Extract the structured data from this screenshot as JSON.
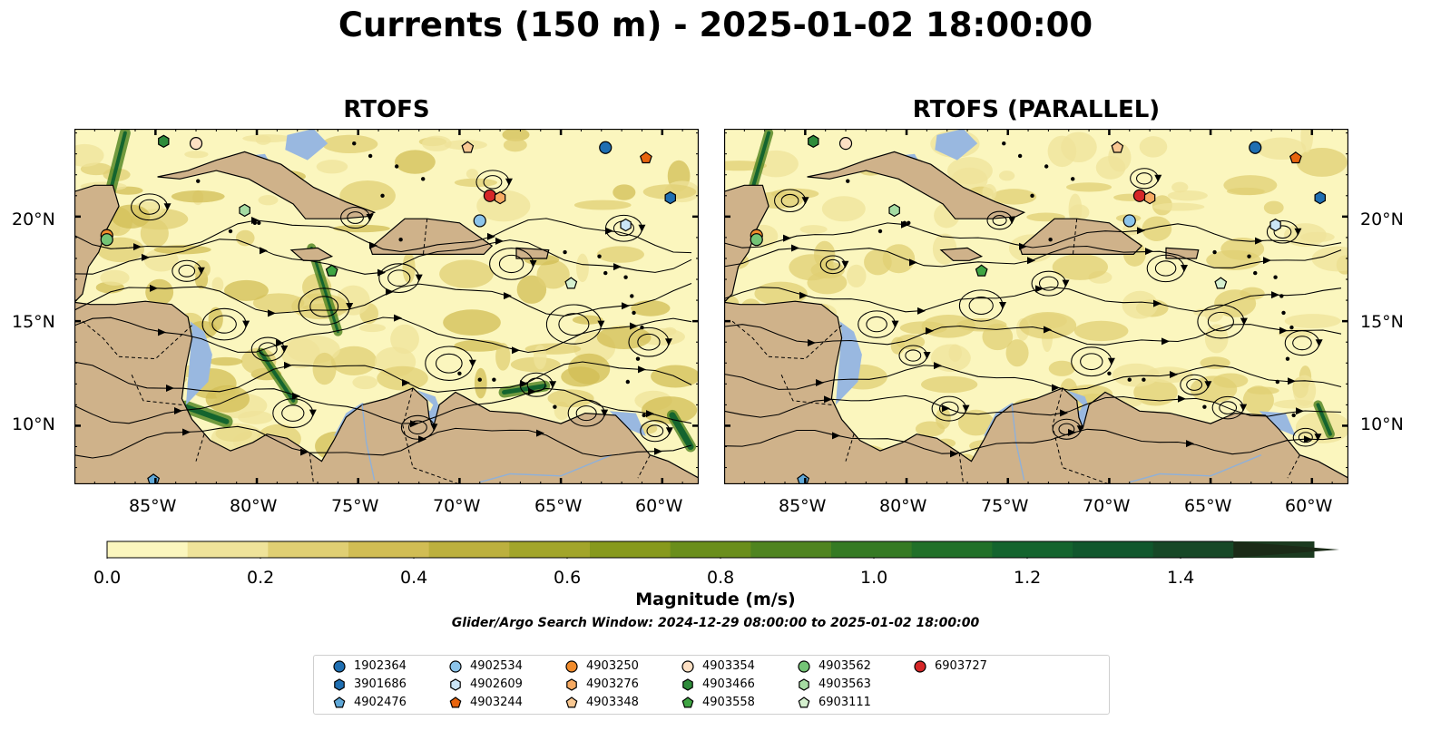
{
  "title": "Currents (150 m) - 2025-01-02 18:00:00",
  "panels": [
    {
      "title": "RTOFS"
    },
    {
      "title": "RTOFS (PARALLEL)"
    }
  ],
  "axes": {
    "lon_labels": [
      "85°W",
      "80°W",
      "75°W",
      "70°W",
      "65°W",
      "60°W"
    ],
    "lat_labels": [
      "20°N",
      "15°N",
      "10°N"
    ],
    "lon_range": [
      -89,
      -58.2
    ],
    "lat_range": [
      7.2,
      24.2
    ]
  },
  "colorbar": {
    "label": "Magnitude (m/s)",
    "ticks": [
      "0.0",
      "0.2",
      "0.4",
      "0.6",
      "0.8",
      "1.0",
      "1.2",
      "1.4"
    ],
    "range": [
      0,
      1.5
    ],
    "extend": "max",
    "colors": [
      "#fbf6be",
      "#efe39a",
      "#e0cf73",
      "#d1bd54",
      "#bcb03e",
      "#a2a52a",
      "#87991d",
      "#6a8e1c",
      "#4f8420",
      "#357a24",
      "#217029",
      "#14642e",
      "#11572d",
      "#174827",
      "#1c3b20",
      "#1b2b17"
    ]
  },
  "search_window": "Glider/Argo Search Window: 2024-12-29 08:00:00 to 2025-01-02 18:00:00",
  "colors": {
    "land": "#cfb28a",
    "ocean_zero": "#99b8e0",
    "marker_outline": "#000000"
  },
  "legend": [
    {
      "id": "1902364",
      "shape": "circle",
      "color": "#1f6fb2"
    },
    {
      "id": "3901686",
      "shape": "hexagon",
      "color": "#1f6fb2"
    },
    {
      "id": "4902476",
      "shape": "pentagon",
      "color": "#5fa8d8"
    },
    {
      "id": "4902534",
      "shape": "circle",
      "color": "#8cc4ea"
    },
    {
      "id": "4902609",
      "shape": "hexagon",
      "color": "#cbe5f6"
    },
    {
      "id": "4903244",
      "shape": "pentagon",
      "color": "#e8640e"
    },
    {
      "id": "4903250",
      "shape": "circle",
      "color": "#f08b2c"
    },
    {
      "id": "4903276",
      "shape": "hexagon",
      "color": "#f7aa62"
    },
    {
      "id": "4903348",
      "shape": "pentagon",
      "color": "#f9c892"
    },
    {
      "id": "4903354",
      "shape": "circle",
      "color": "#fde0c4"
    },
    {
      "id": "4903466",
      "shape": "hexagon",
      "color": "#2e8b3a"
    },
    {
      "id": "4903558",
      "shape": "pentagon",
      "color": "#3fa543"
    },
    {
      "id": "4903562",
      "shape": "circle",
      "color": "#74c476"
    },
    {
      "id": "4903563",
      "shape": "hexagon",
      "color": "#a6dca3"
    },
    {
      "id": "6903111",
      "shape": "pentagon",
      "color": "#d5f0cf"
    },
    {
      "id": "6903727",
      "shape": "circle",
      "color": "#d62728"
    }
  ],
  "float_positions": [
    {
      "id": "6903727",
      "lon": -68.5,
      "lat": 21.0
    },
    {
      "id": "4903276",
      "lon": -68.0,
      "lat": 20.9
    },
    {
      "id": "4902534",
      "lon": -69.0,
      "lat": 19.8
    },
    {
      "id": "1902364",
      "lon": -62.8,
      "lat": 23.3
    },
    {
      "id": "4903244",
      "lon": -60.8,
      "lat": 22.8
    },
    {
      "id": "3901686",
      "lon": -59.6,
      "lat": 20.9
    },
    {
      "id": "4902609",
      "lon": -61.8,
      "lat": 19.6
    },
    {
      "id": "4903348",
      "lon": -69.6,
      "lat": 23.3
    },
    {
      "id": "4903354",
      "lon": -83.0,
      "lat": 23.5
    },
    {
      "id": "4903466",
      "lon": -84.6,
      "lat": 23.6
    },
    {
      "id": "4903563",
      "lon": -80.6,
      "lat": 20.3
    },
    {
      "id": "4903250",
      "lon": -87.4,
      "lat": 19.1
    },
    {
      "id": "4903562",
      "lon": -87.4,
      "lat": 18.9
    },
    {
      "id": "4903558",
      "lon": -76.3,
      "lat": 17.4
    },
    {
      "id": "6903111",
      "lon": -64.5,
      "lat": 16.8
    },
    {
      "id": "4902476",
      "lon": -85.1,
      "lat": 7.4
    }
  ]
}
